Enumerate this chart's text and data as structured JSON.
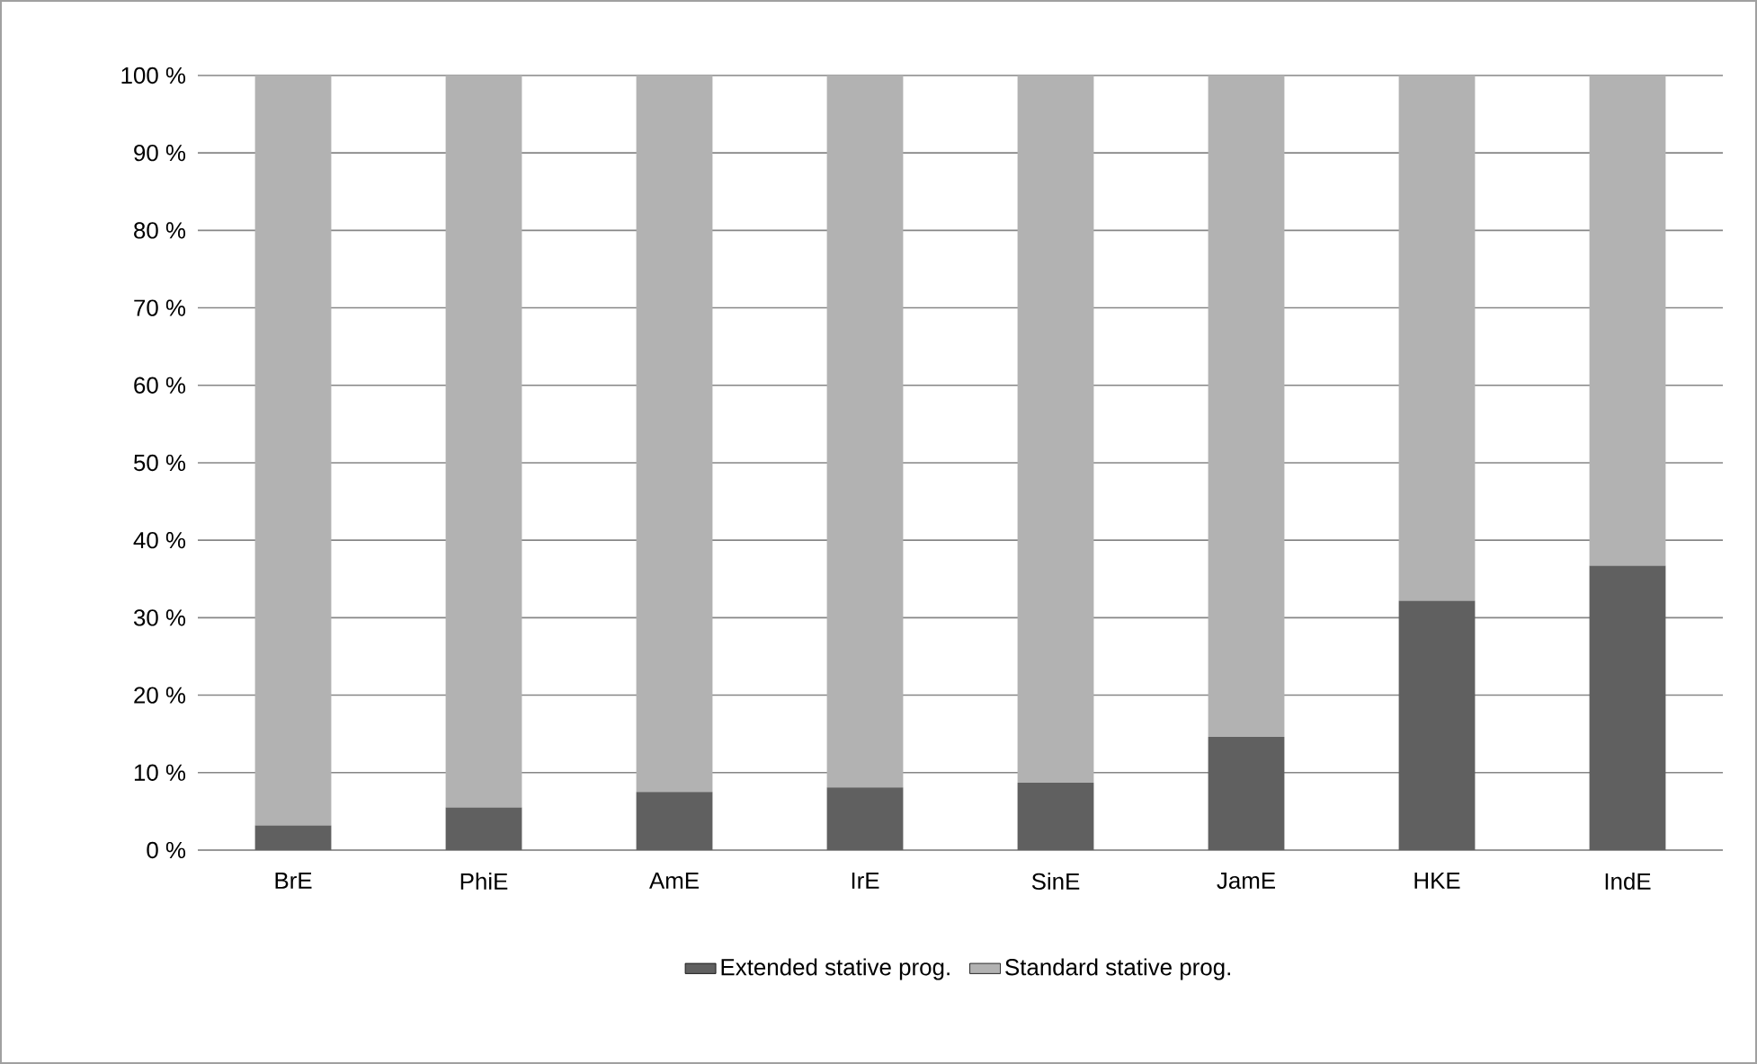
{
  "chart_data": {
    "type": "bar",
    "stacked": true,
    "categories": [
      "BrE",
      "PhiE",
      "AmE",
      "IrE",
      "SinE",
      "JamE",
      "HKE",
      "IndE"
    ],
    "series": [
      {
        "name": "Extended stative prog.",
        "color": "#606060",
        "values": [
          3.2,
          5.5,
          7.5,
          8.1,
          8.7,
          14.6,
          32.2,
          36.7
        ]
      },
      {
        "name": "Standard stative prog.",
        "color": "#b2b2b2",
        "values": [
          96.8,
          94.5,
          92.5,
          91.9,
          91.3,
          85.4,
          67.8,
          63.3
        ]
      }
    ],
    "ylim": [
      0,
      100
    ],
    "yticks": [
      {
        "value": 0,
        "label": "0 %"
      },
      {
        "value": 10,
        "label": "10 %"
      },
      {
        "value": 20,
        "label": "20 %"
      },
      {
        "value": 30,
        "label": "30 %"
      },
      {
        "value": 40,
        "label": "40 %"
      },
      {
        "value": 50,
        "label": "50 %"
      },
      {
        "value": 60,
        "label": "60 %"
      },
      {
        "value": 70,
        "label": "70 %"
      },
      {
        "value": 80,
        "label": "80 %"
      },
      {
        "value": 90,
        "label": "90 %"
      },
      {
        "value": 100,
        "label": "100 %"
      }
    ],
    "grid": "y",
    "legend": "bottom"
  }
}
